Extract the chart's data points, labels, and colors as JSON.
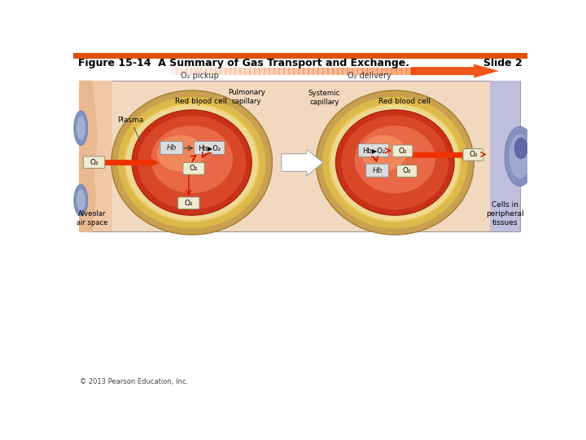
{
  "title": "Figure 15-14  A Summary of Gas Transport and Exchange.",
  "slide_text": "Slide 2",
  "subtitle_left": "O₂ pickup",
  "subtitle_right": "O₂ delivery",
  "copyright": "© 2013 Pearson Education, Inc.",
  "header_bar_color": "#E05000",
  "bg_color": "#ffffff",
  "panel_bg": "#F2D8BE",
  "alveolar_color": "#F0C8A8",
  "cap_outer_color": "#C8A050",
  "cap_inner_color": "#DDB84A",
  "rbc_dark": "#C83018",
  "rbc_mid": "#D84828",
  "rbc_light": "#E86848",
  "rbc_highlight": "#F89868",
  "tissue_bg": "#C0BEDD",
  "tissue_cell": "#8890C0",
  "arrow_red": "#CC2000",
  "arrow_big_color": "#EE3300",
  "mid_arrow_color": "#E8E8E8",
  "label_box": "#F0EAD0",
  "hb_box": "#E0E0E0",
  "border_color": "#999999"
}
